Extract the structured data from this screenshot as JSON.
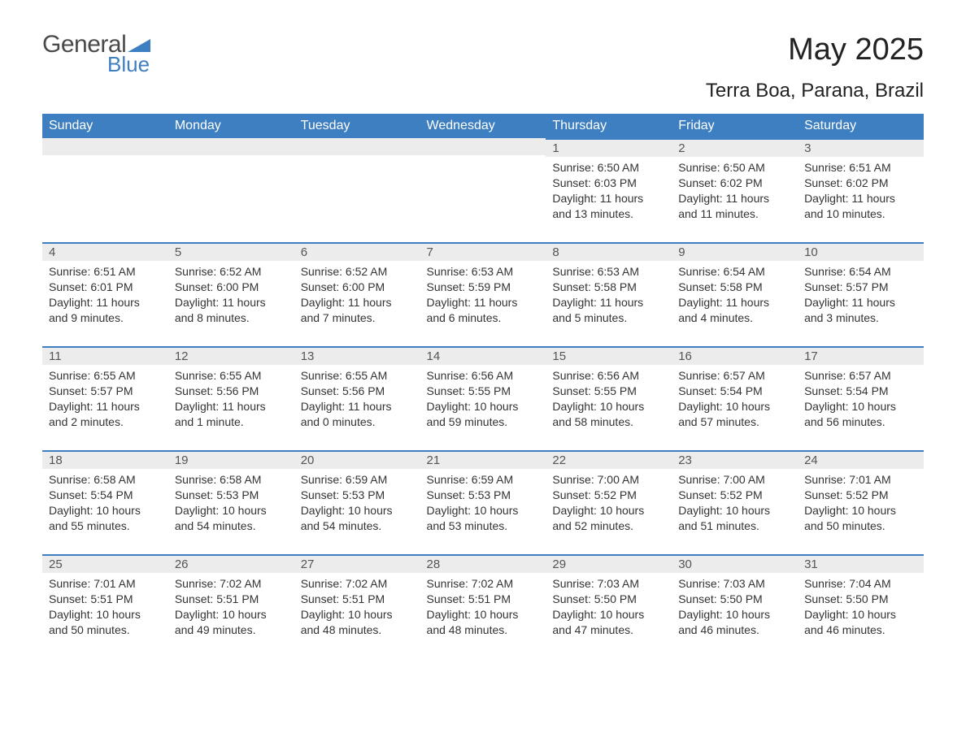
{
  "logo": {
    "word1": "General",
    "word2": "Blue",
    "word1_color": "#4a4a4a",
    "word2_color": "#3d7fc0",
    "triangle_color": "#3d7fc0"
  },
  "title": "May 2025",
  "location": "Terra Boa, Parana, Brazil",
  "colors": {
    "header_bg": "#3d7fc0",
    "header_text": "#ffffff",
    "daynum_bg": "#ececec",
    "day_border_top": "#3d7fc0",
    "body_text": "#333333",
    "page_bg": "#ffffff"
  },
  "fonts": {
    "title_size_pt": 28,
    "location_size_pt": 18,
    "dayheader_size_pt": 12,
    "cell_size_pt": 10
  },
  "weekdays": [
    "Sunday",
    "Monday",
    "Tuesday",
    "Wednesday",
    "Thursday",
    "Friday",
    "Saturday"
  ],
  "weeks": [
    [
      null,
      null,
      null,
      null,
      {
        "n": "1",
        "sunrise": "6:50 AM",
        "sunset": "6:03 PM",
        "daylight": "11 hours and 13 minutes."
      },
      {
        "n": "2",
        "sunrise": "6:50 AM",
        "sunset": "6:02 PM",
        "daylight": "11 hours and 11 minutes."
      },
      {
        "n": "3",
        "sunrise": "6:51 AM",
        "sunset": "6:02 PM",
        "daylight": "11 hours and 10 minutes."
      }
    ],
    [
      {
        "n": "4",
        "sunrise": "6:51 AM",
        "sunset": "6:01 PM",
        "daylight": "11 hours and 9 minutes."
      },
      {
        "n": "5",
        "sunrise": "6:52 AM",
        "sunset": "6:00 PM",
        "daylight": "11 hours and 8 minutes."
      },
      {
        "n": "6",
        "sunrise": "6:52 AM",
        "sunset": "6:00 PM",
        "daylight": "11 hours and 7 minutes."
      },
      {
        "n": "7",
        "sunrise": "6:53 AM",
        "sunset": "5:59 PM",
        "daylight": "11 hours and 6 minutes."
      },
      {
        "n": "8",
        "sunrise": "6:53 AM",
        "sunset": "5:58 PM",
        "daylight": "11 hours and 5 minutes."
      },
      {
        "n": "9",
        "sunrise": "6:54 AM",
        "sunset": "5:58 PM",
        "daylight": "11 hours and 4 minutes."
      },
      {
        "n": "10",
        "sunrise": "6:54 AM",
        "sunset": "5:57 PM",
        "daylight": "11 hours and 3 minutes."
      }
    ],
    [
      {
        "n": "11",
        "sunrise": "6:55 AM",
        "sunset": "5:57 PM",
        "daylight": "11 hours and 2 minutes."
      },
      {
        "n": "12",
        "sunrise": "6:55 AM",
        "sunset": "5:56 PM",
        "daylight": "11 hours and 1 minute."
      },
      {
        "n": "13",
        "sunrise": "6:55 AM",
        "sunset": "5:56 PM",
        "daylight": "11 hours and 0 minutes."
      },
      {
        "n": "14",
        "sunrise": "6:56 AM",
        "sunset": "5:55 PM",
        "daylight": "10 hours and 59 minutes."
      },
      {
        "n": "15",
        "sunrise": "6:56 AM",
        "sunset": "5:55 PM",
        "daylight": "10 hours and 58 minutes."
      },
      {
        "n": "16",
        "sunrise": "6:57 AM",
        "sunset": "5:54 PM",
        "daylight": "10 hours and 57 minutes."
      },
      {
        "n": "17",
        "sunrise": "6:57 AM",
        "sunset": "5:54 PM",
        "daylight": "10 hours and 56 minutes."
      }
    ],
    [
      {
        "n": "18",
        "sunrise": "6:58 AM",
        "sunset": "5:54 PM",
        "daylight": "10 hours and 55 minutes."
      },
      {
        "n": "19",
        "sunrise": "6:58 AM",
        "sunset": "5:53 PM",
        "daylight": "10 hours and 54 minutes."
      },
      {
        "n": "20",
        "sunrise": "6:59 AM",
        "sunset": "5:53 PM",
        "daylight": "10 hours and 54 minutes."
      },
      {
        "n": "21",
        "sunrise": "6:59 AM",
        "sunset": "5:53 PM",
        "daylight": "10 hours and 53 minutes."
      },
      {
        "n": "22",
        "sunrise": "7:00 AM",
        "sunset": "5:52 PM",
        "daylight": "10 hours and 52 minutes."
      },
      {
        "n": "23",
        "sunrise": "7:00 AM",
        "sunset": "5:52 PM",
        "daylight": "10 hours and 51 minutes."
      },
      {
        "n": "24",
        "sunrise": "7:01 AM",
        "sunset": "5:52 PM",
        "daylight": "10 hours and 50 minutes."
      }
    ],
    [
      {
        "n": "25",
        "sunrise": "7:01 AM",
        "sunset": "5:51 PM",
        "daylight": "10 hours and 50 minutes."
      },
      {
        "n": "26",
        "sunrise": "7:02 AM",
        "sunset": "5:51 PM",
        "daylight": "10 hours and 49 minutes."
      },
      {
        "n": "27",
        "sunrise": "7:02 AM",
        "sunset": "5:51 PM",
        "daylight": "10 hours and 48 minutes."
      },
      {
        "n": "28",
        "sunrise": "7:02 AM",
        "sunset": "5:51 PM",
        "daylight": "10 hours and 48 minutes."
      },
      {
        "n": "29",
        "sunrise": "7:03 AM",
        "sunset": "5:50 PM",
        "daylight": "10 hours and 47 minutes."
      },
      {
        "n": "30",
        "sunrise": "7:03 AM",
        "sunset": "5:50 PM",
        "daylight": "10 hours and 46 minutes."
      },
      {
        "n": "31",
        "sunrise": "7:04 AM",
        "sunset": "5:50 PM",
        "daylight": "10 hours and 46 minutes."
      }
    ]
  ],
  "labels": {
    "sunrise": "Sunrise:",
    "sunset": "Sunset:",
    "daylight": "Daylight:"
  }
}
